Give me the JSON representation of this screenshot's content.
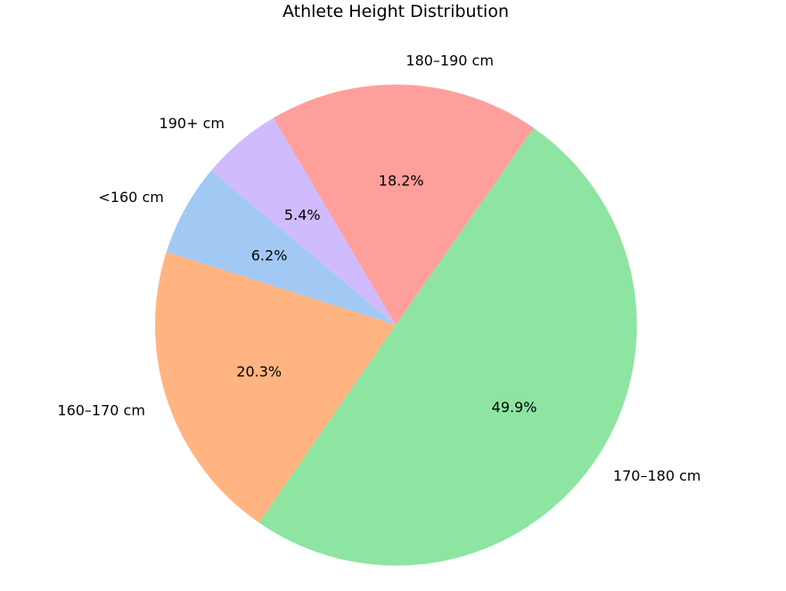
{
  "chart_data": {
    "type": "pie",
    "title": "Athlete Height Distribution",
    "categories": [
      "<160 cm",
      "160–170 cm",
      "170–180 cm",
      "180–190 cm",
      "190+ cm"
    ],
    "values": [
      6.2,
      20.3,
      49.9,
      18.2,
      5.4
    ],
    "value_labels": [
      "6.2%",
      "20.3%",
      "49.9%",
      "18.2%",
      "5.4%"
    ],
    "colors": [
      "#a1c9f4",
      "#ffb482",
      "#8de5a1",
      "#ff9f9b",
      "#d0bbff"
    ],
    "start_angle_deg": 140,
    "direction": "counterclockwise",
    "legend": "none"
  }
}
